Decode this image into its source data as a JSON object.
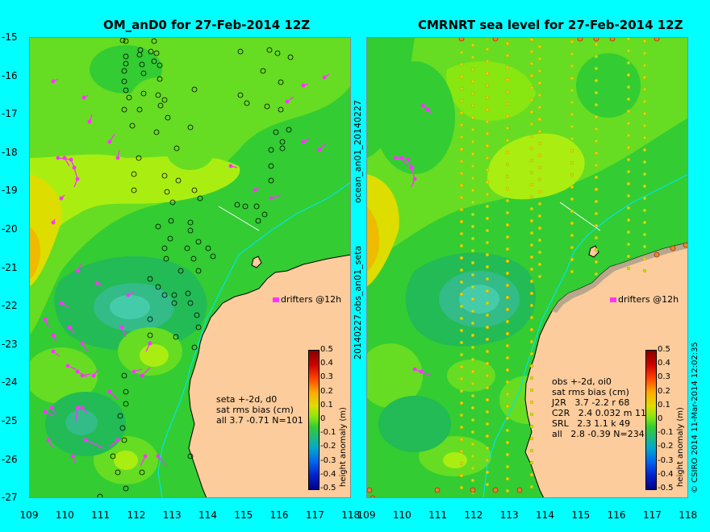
{
  "left_panel": {
    "title": "OM_anD0 for 27-Feb-2014 12Z",
    "stats_lines": [
      "seta +-2d, d0",
      "sat rms bias (cm)",
      "all 3.7 -0.71 N=101"
    ],
    "drifters_label": "drifters @12h"
  },
  "right_panel": {
    "title": "CMRNRT sea level  for 27-Feb-2014 12Z",
    "stats_lines": [
      "obs +-2d, oi0",
      "sat rms bias (cm)",
      "J2R   3.7 -2.2 r 68",
      "C2R   2.4 0.032 m 11",
      "SRL   2.3 1.1 k 49",
      "all   2.8 -0.39 N=234"
    ],
    "drifters_label": "drifters @12h"
  },
  "side_text": {
    "top": "ocean_an01_20140227",
    "bottom": "20140227.obs_an01_seta",
    "credit": "© CSIRO 2014   11-Mar-2014 12:02:35"
  },
  "axes": {
    "y_ticks": [
      "-15",
      "-16",
      "-17",
      "-18",
      "-19",
      "-20",
      "-21",
      "-22",
      "-23",
      "-24",
      "-25",
      "-26",
      "-27"
    ],
    "x_ticks": [
      "109",
      "110",
      "111",
      "112",
      "113",
      "114",
      "115",
      "116",
      "117",
      "118"
    ],
    "x_range": [
      109,
      118
    ],
    "y_range": [
      -27,
      -15
    ]
  },
  "colorbar": {
    "label": "height anomaly (m)",
    "ticks": [
      "0.5",
      "0.4",
      "0.3",
      "0.2",
      "0.1",
      "0",
      "-0.1",
      "-0.2",
      "-0.3",
      "-0.4",
      "-0.5"
    ],
    "range": [
      -0.5,
      0.5
    ]
  },
  "colors": {
    "background": "#00ffff",
    "land": "#fccc9c",
    "ocean_mid": "#33cc33",
    "drifter": "#ff33ff",
    "track": "#00e5e5"
  }
}
